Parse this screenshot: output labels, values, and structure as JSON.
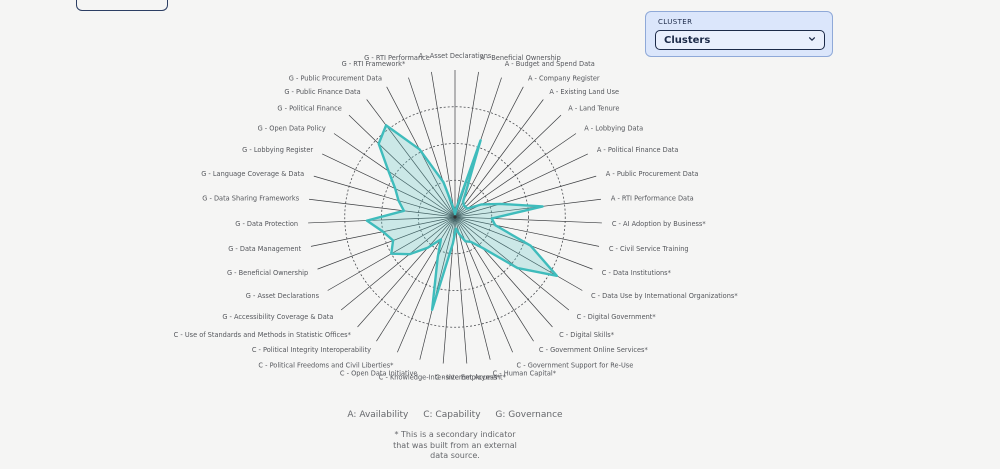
{
  "cluster_filter": {
    "label": "CLUSTER",
    "selected": "Clusters",
    "icon": "chevron-down-icon"
  },
  "colors": {
    "series_fill": "#5cc7c6",
    "series_stroke": "#3fbcbc",
    "axis": "#3b3d40",
    "ring": "#4a4c50"
  },
  "chart_data": {
    "type": "radar",
    "rlim": [
      0,
      1
    ],
    "rings": [
      0.25,
      0.5,
      0.75
    ],
    "legend": {
      "items": [
        "A: Availability",
        "C: Capability",
        "G: Governance"
      ],
      "position": "bottom"
    },
    "footnote": [
      "* This is a secondary indicator",
      "that was built from an external",
      "data source."
    ],
    "axes": [
      "A - Asset Declarations",
      "A - Beneficial Ownership",
      "A - Budget and Spend Data",
      "A - Company Register",
      "A - Existing Land Use",
      "A - Land Tenure",
      "A - Lobbying Data",
      "A - Political Finance Data",
      "A - Public Procurement Data",
      "A - RTI Performance Data",
      "C - AI Adoption by Business*",
      "C - Civil Service Training",
      "C - Data Institutions*",
      "C - Data Use by International Organizations*",
      "C - Digital Government*",
      "C - Digital Skills*",
      "C - Government Online Services*",
      "C - Government Support for Re-Use",
      "C - Human Capital*",
      "C - Internet Access*",
      "C - Knowledge-Intensive Employment*",
      "C - Open Data Initiative",
      "C - Political Freedoms and Civil Liberties*",
      "C - Political Integrity Interoperability",
      "C - Use of Standards and Methods in Statistic Offices*",
      "G - Accessibility Coverage & Data",
      "G - Asset Declarations",
      "G - Beneficial Ownership",
      "G - Data Management",
      "G - Data Protection",
      "G - Data Sharing Frameworks",
      "G - Language Coverage & Data",
      "G - Lobbying Register",
      "G - Open Data Policy",
      "G - Political Finance",
      "G - Public Finance Data",
      "G - Public Procurement Data",
      "G - RTI Framework*",
      "G - RTI Performance"
    ],
    "series": [
      {
        "values": [
          0.02,
          0.06,
          0.55,
          0.12,
          0.1,
          0.1,
          0.1,
          0.2,
          0.32,
          0.6,
          0.25,
          0.28,
          0.55,
          0.8,
          0.55,
          0.28,
          0.2,
          0.18,
          0.12,
          0.08,
          0.18,
          0.65,
          0.3,
          0.18,
          0.28,
          0.4,
          0.5,
          0.45,
          0.5,
          0.6,
          0.35,
          0.4,
          0.45,
          0.55,
          0.72,
          0.78,
          0.52,
          0.25,
          0.06
        ]
      }
    ]
  }
}
